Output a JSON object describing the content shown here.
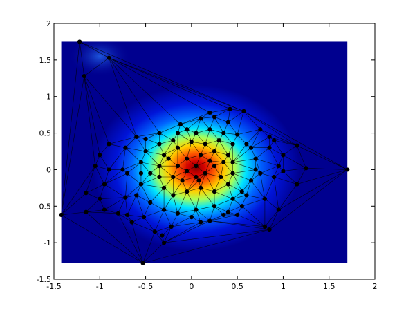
{
  "chart_data": {
    "type": "scatter",
    "title": "",
    "xlabel": "",
    "ylabel": "",
    "xlim": [
      -1.5,
      2
    ],
    "ylim": [
      -1.5,
      2
    ],
    "x_ticks": [
      -1.5,
      -1,
      -0.5,
      0,
      0.5,
      1,
      1.5,
      2
    ],
    "y_ticks": [
      -1.5,
      -1,
      -0.5,
      0,
      0.5,
      1,
      1.5,
      2
    ],
    "x_tick_labels": [
      "-1.5",
      "-1",
      "-0.5",
      "0",
      "0.5",
      "1",
      "1.5",
      "2"
    ],
    "y_tick_labels": [
      "-1.5",
      "-1",
      "-0.5",
      "0",
      "0.5",
      "1",
      "1.5",
      "2"
    ],
    "grid": false,
    "colormap": "jet",
    "heatmap_extent": {
      "x": [
        -1.42,
        1.7
      ],
      "y": [
        -1.28,
        1.75
      ]
    },
    "heatmap_peak": {
      "x": 0.05,
      "y": 0.02
    },
    "series": [
      {
        "points": [
          [
            -1.22,
            1.75
          ],
          [
            -0.9,
            1.53
          ],
          [
            -1.17,
            1.28
          ],
          [
            -1.42,
            -0.62
          ],
          [
            -0.53,
            -1.28
          ],
          [
            1.7,
            0.0
          ],
          [
            1.15,
            0.33
          ],
          [
            1.25,
            0.02
          ],
          [
            1.15,
            -0.2
          ],
          [
            0.42,
            0.83
          ],
          [
            0.57,
            0.8
          ],
          [
            0.25,
            0.72
          ],
          [
            0.1,
            0.7
          ],
          [
            -0.12,
            0.62
          ],
          [
            -0.35,
            0.5
          ],
          [
            -0.5,
            0.42
          ],
          [
            -0.72,
            0.3
          ],
          [
            -0.9,
            0.35
          ],
          [
            -1.0,
            0.2
          ],
          [
            -1.05,
            0.05
          ],
          [
            -0.9,
            0.0
          ],
          [
            -0.75,
            0.0
          ],
          [
            -0.7,
            -0.05
          ],
          [
            -0.95,
            -0.2
          ],
          [
            -1.15,
            -0.32
          ],
          [
            -1.15,
            -0.58
          ],
          [
            -0.95,
            -0.55
          ],
          [
            -0.72,
            -0.38
          ],
          [
            -0.7,
            -0.62
          ],
          [
            -0.65,
            -0.72
          ],
          [
            -0.52,
            -0.65
          ],
          [
            -0.4,
            -0.85
          ],
          [
            -0.32,
            -0.9
          ],
          [
            -0.3,
            -1.0
          ],
          [
            0.0,
            -0.65
          ],
          [
            0.1,
            -0.72
          ],
          [
            0.2,
            -0.7
          ],
          [
            0.4,
            -0.58
          ],
          [
            0.55,
            -0.5
          ],
          [
            0.8,
            -0.78
          ],
          [
            0.85,
            -0.82
          ],
          [
            0.95,
            -0.55
          ],
          [
            0.9,
            0.4
          ],
          [
            0.85,
            0.3
          ],
          [
            0.95,
            0.05
          ],
          [
            1.0,
            -0.02
          ],
          [
            0.9,
            -0.1
          ],
          [
            0.75,
            -0.05
          ],
          [
            0.6,
            0.35
          ],
          [
            0.5,
            0.48
          ],
          [
            0.35,
            0.5
          ],
          [
            0.2,
            0.55
          ],
          [
            0.05,
            0.5
          ],
          [
            -0.05,
            0.55
          ],
          [
            -0.2,
            0.4
          ],
          [
            -0.35,
            0.35
          ],
          [
            -0.5,
            0.25
          ],
          [
            -0.55,
            0.1
          ],
          [
            -0.55,
            -0.05
          ],
          [
            -0.55,
            -0.2
          ],
          [
            -0.6,
            -0.35
          ],
          [
            -0.45,
            -0.45
          ],
          [
            -0.3,
            -0.55
          ],
          [
            -0.15,
            -0.6
          ],
          [
            0.05,
            -0.55
          ],
          [
            0.25,
            -0.5
          ],
          [
            0.45,
            -0.4
          ],
          [
            0.55,
            -0.3
          ],
          [
            0.65,
            -0.15
          ],
          [
            0.7,
            0.0
          ],
          [
            0.7,
            0.15
          ],
          [
            0.65,
            0.3
          ],
          [
            0.45,
            0.35
          ],
          [
            0.3,
            0.4
          ],
          [
            0.15,
            0.35
          ],
          [
            0.0,
            0.38
          ],
          [
            -0.15,
            0.3
          ],
          [
            -0.3,
            0.2
          ],
          [
            -0.35,
            0.05
          ],
          [
            -0.35,
            -0.1
          ],
          [
            -0.3,
            -0.25
          ],
          [
            -0.2,
            -0.35
          ],
          [
            -0.05,
            -0.3
          ],
          [
            0.1,
            -0.25
          ],
          [
            0.25,
            -0.3
          ],
          [
            0.4,
            -0.2
          ],
          [
            0.45,
            -0.05
          ],
          [
            0.45,
            0.1
          ],
          [
            0.4,
            0.2
          ],
          [
            0.25,
            0.25
          ],
          [
            0.1,
            0.2
          ],
          [
            -0.05,
            0.15
          ],
          [
            -0.15,
            0.05
          ],
          [
            -0.2,
            -0.1
          ],
          [
            -0.1,
            -0.15
          ],
          [
            0.05,
            -0.1
          ],
          [
            0.15,
            -0.05
          ],
          [
            0.25,
            0.05
          ],
          [
            0.2,
            0.12
          ],
          [
            0.05,
            0.05
          ],
          [
            -0.05,
            -0.02
          ],
          [
            0.08,
            -0.15
          ],
          [
            0.32,
            -0.1
          ],
          [
            0.35,
            0.1
          ],
          [
            -0.25,
            0.15
          ],
          [
            -0.45,
            -0.05
          ],
          [
            0.6,
            -0.35
          ],
          [
            0.35,
            -0.62
          ],
          [
            -0.22,
            -0.78
          ],
          [
            -0.8,
            -0.6
          ],
          [
            -1.0,
            -0.4
          ],
          [
            -0.6,
            0.45
          ],
          [
            -0.15,
            0.5
          ],
          [
            0.2,
            0.78
          ],
          [
            0.4,
            0.65
          ],
          [
            0.75,
            0.55
          ],
          [
            0.85,
            0.45
          ],
          [
            1.0,
            0.2
          ],
          [
            0.8,
            -0.4
          ],
          [
            0.5,
            -0.62
          ]
        ]
      }
    ]
  }
}
